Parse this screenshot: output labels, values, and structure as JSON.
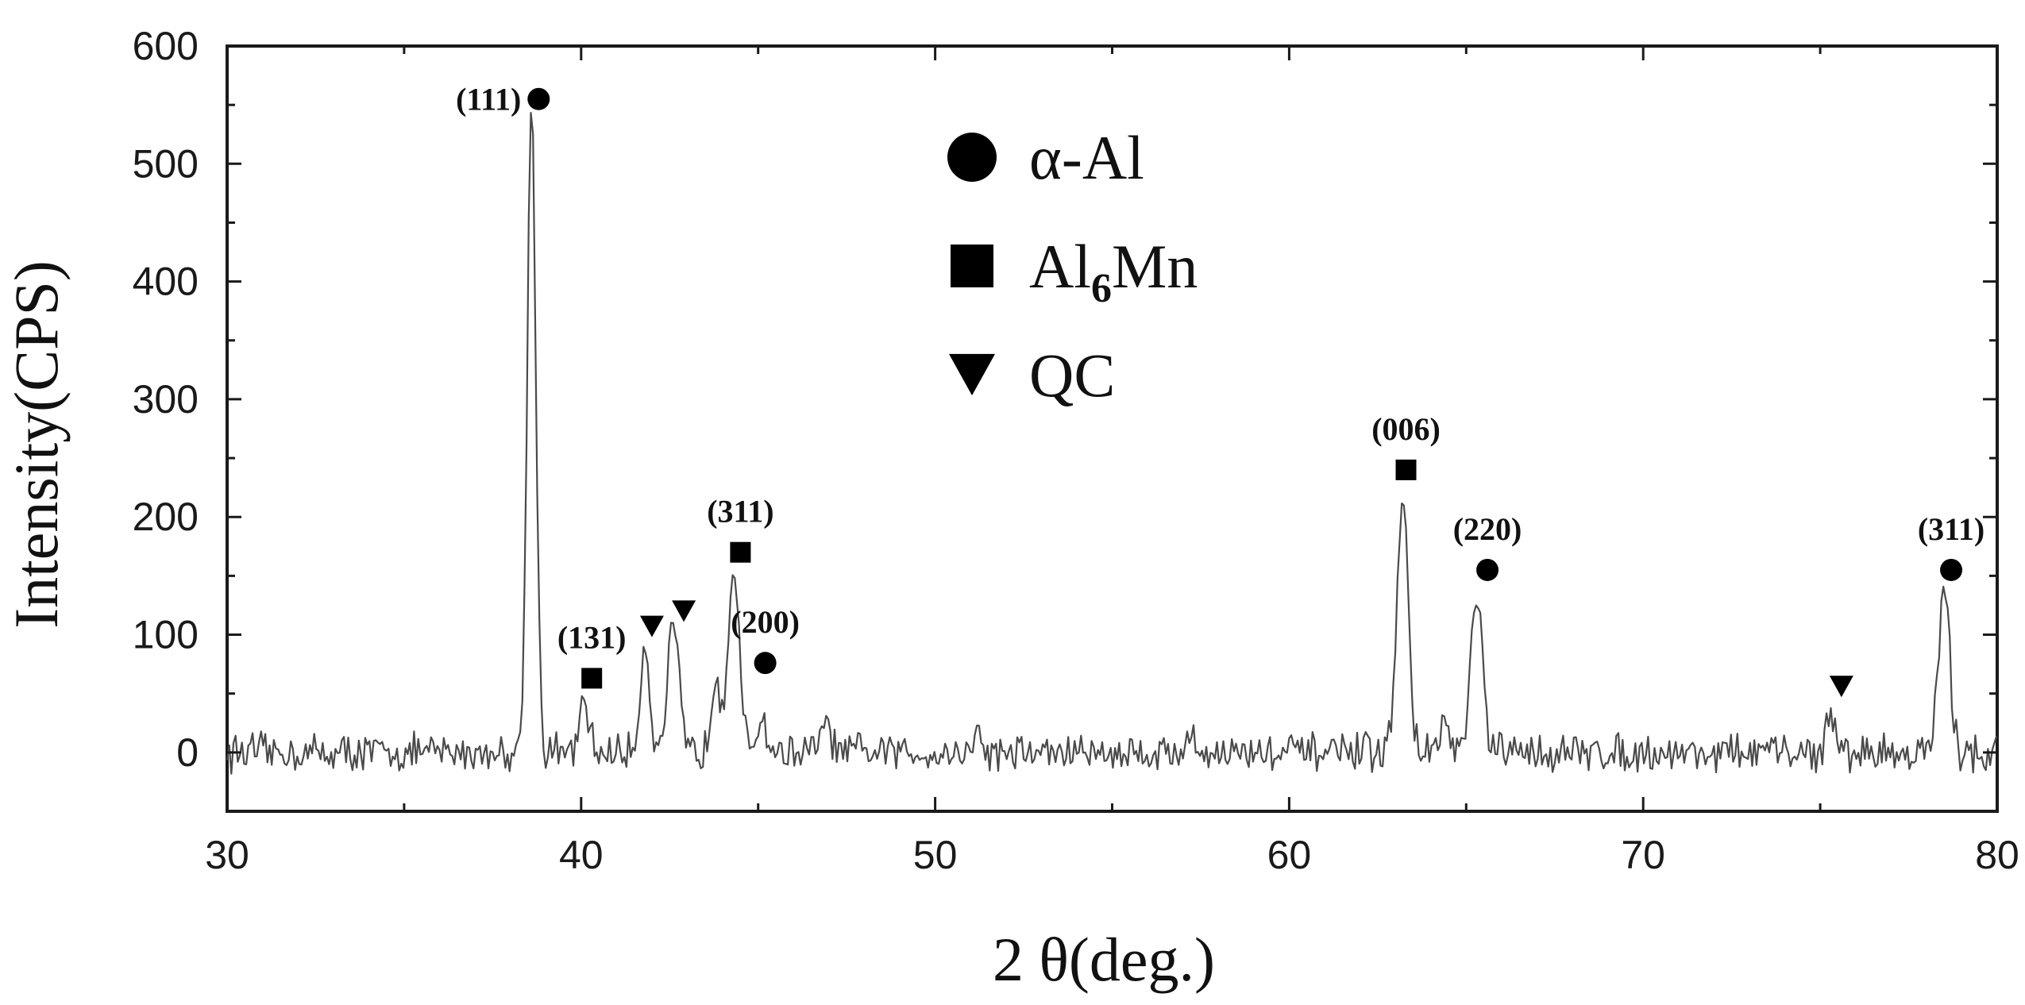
{
  "chart_data": {
    "type": "line",
    "xlabel": "2 θ(deg.)",
    "ylabel": "Intensity(CPS)",
    "xlim": [
      30,
      80
    ],
    "ylim": [
      -50,
      600
    ],
    "xticks": [
      30,
      40,
      50,
      60,
      70,
      80
    ],
    "yticks": [
      0,
      100,
      200,
      300,
      400,
      500,
      600
    ],
    "grid": false,
    "legend_position": "top-center",
    "legend": [
      {
        "marker": "circle",
        "label": "α-Al"
      },
      {
        "marker": "square",
        "label_main": "Al",
        "label_sub": "6",
        "label_tail": "Mn"
      },
      {
        "marker": "triangle-down",
        "label": "QC"
      }
    ],
    "peaks": [
      {
        "x": 38.6,
        "y": 555
      },
      {
        "x": 40.1,
        "y": 40
      },
      {
        "x": 41.8,
        "y": 92
      },
      {
        "x": 42.6,
        "y": 105
      },
      {
        "x": 43.8,
        "y": 65
      },
      {
        "x": 44.3,
        "y": 155
      },
      {
        "x": 45.1,
        "y": 30
      },
      {
        "x": 46.9,
        "y": 25
      },
      {
        "x": 51.2,
        "y": 15
      },
      {
        "x": 57.2,
        "y": 12
      },
      {
        "x": 63.2,
        "y": 215
      },
      {
        "x": 64.4,
        "y": 25
      },
      {
        "x": 65.3,
        "y": 133
      },
      {
        "x": 75.3,
        "y": 28
      },
      {
        "x": 78.5,
        "y": 135
      }
    ],
    "annotations": [
      {
        "marker": "circle",
        "text": "(111)",
        "x": 38.8,
        "y": 555,
        "label_side": "left"
      },
      {
        "marker": "square",
        "text": "(131)",
        "x": 40.3,
        "y": 63,
        "label_side": "above"
      },
      {
        "marker": "triangle-down",
        "text": "",
        "x": 42.0,
        "y": 107,
        "label_side": "none"
      },
      {
        "marker": "triangle-down",
        "text": "",
        "x": 42.9,
        "y": 120,
        "label_side": "none"
      },
      {
        "marker": "square",
        "text": "(311)",
        "x": 44.5,
        "y": 170,
        "label_side": "above"
      },
      {
        "marker": "circle",
        "text": "(200)",
        "x": 45.2,
        "y": 76,
        "label_side": "above"
      },
      {
        "marker": "square",
        "text": "(006)",
        "x": 63.3,
        "y": 240,
        "label_side": "above"
      },
      {
        "marker": "circle",
        "text": "(220)",
        "x": 65.6,
        "y": 155,
        "label_side": "above"
      },
      {
        "marker": "triangle-down",
        "text": "",
        "x": 75.6,
        "y": 56,
        "label_side": "none"
      },
      {
        "marker": "circle",
        "text": "(311)",
        "x": 78.7,
        "y": 155,
        "label_side": "above"
      }
    ]
  }
}
